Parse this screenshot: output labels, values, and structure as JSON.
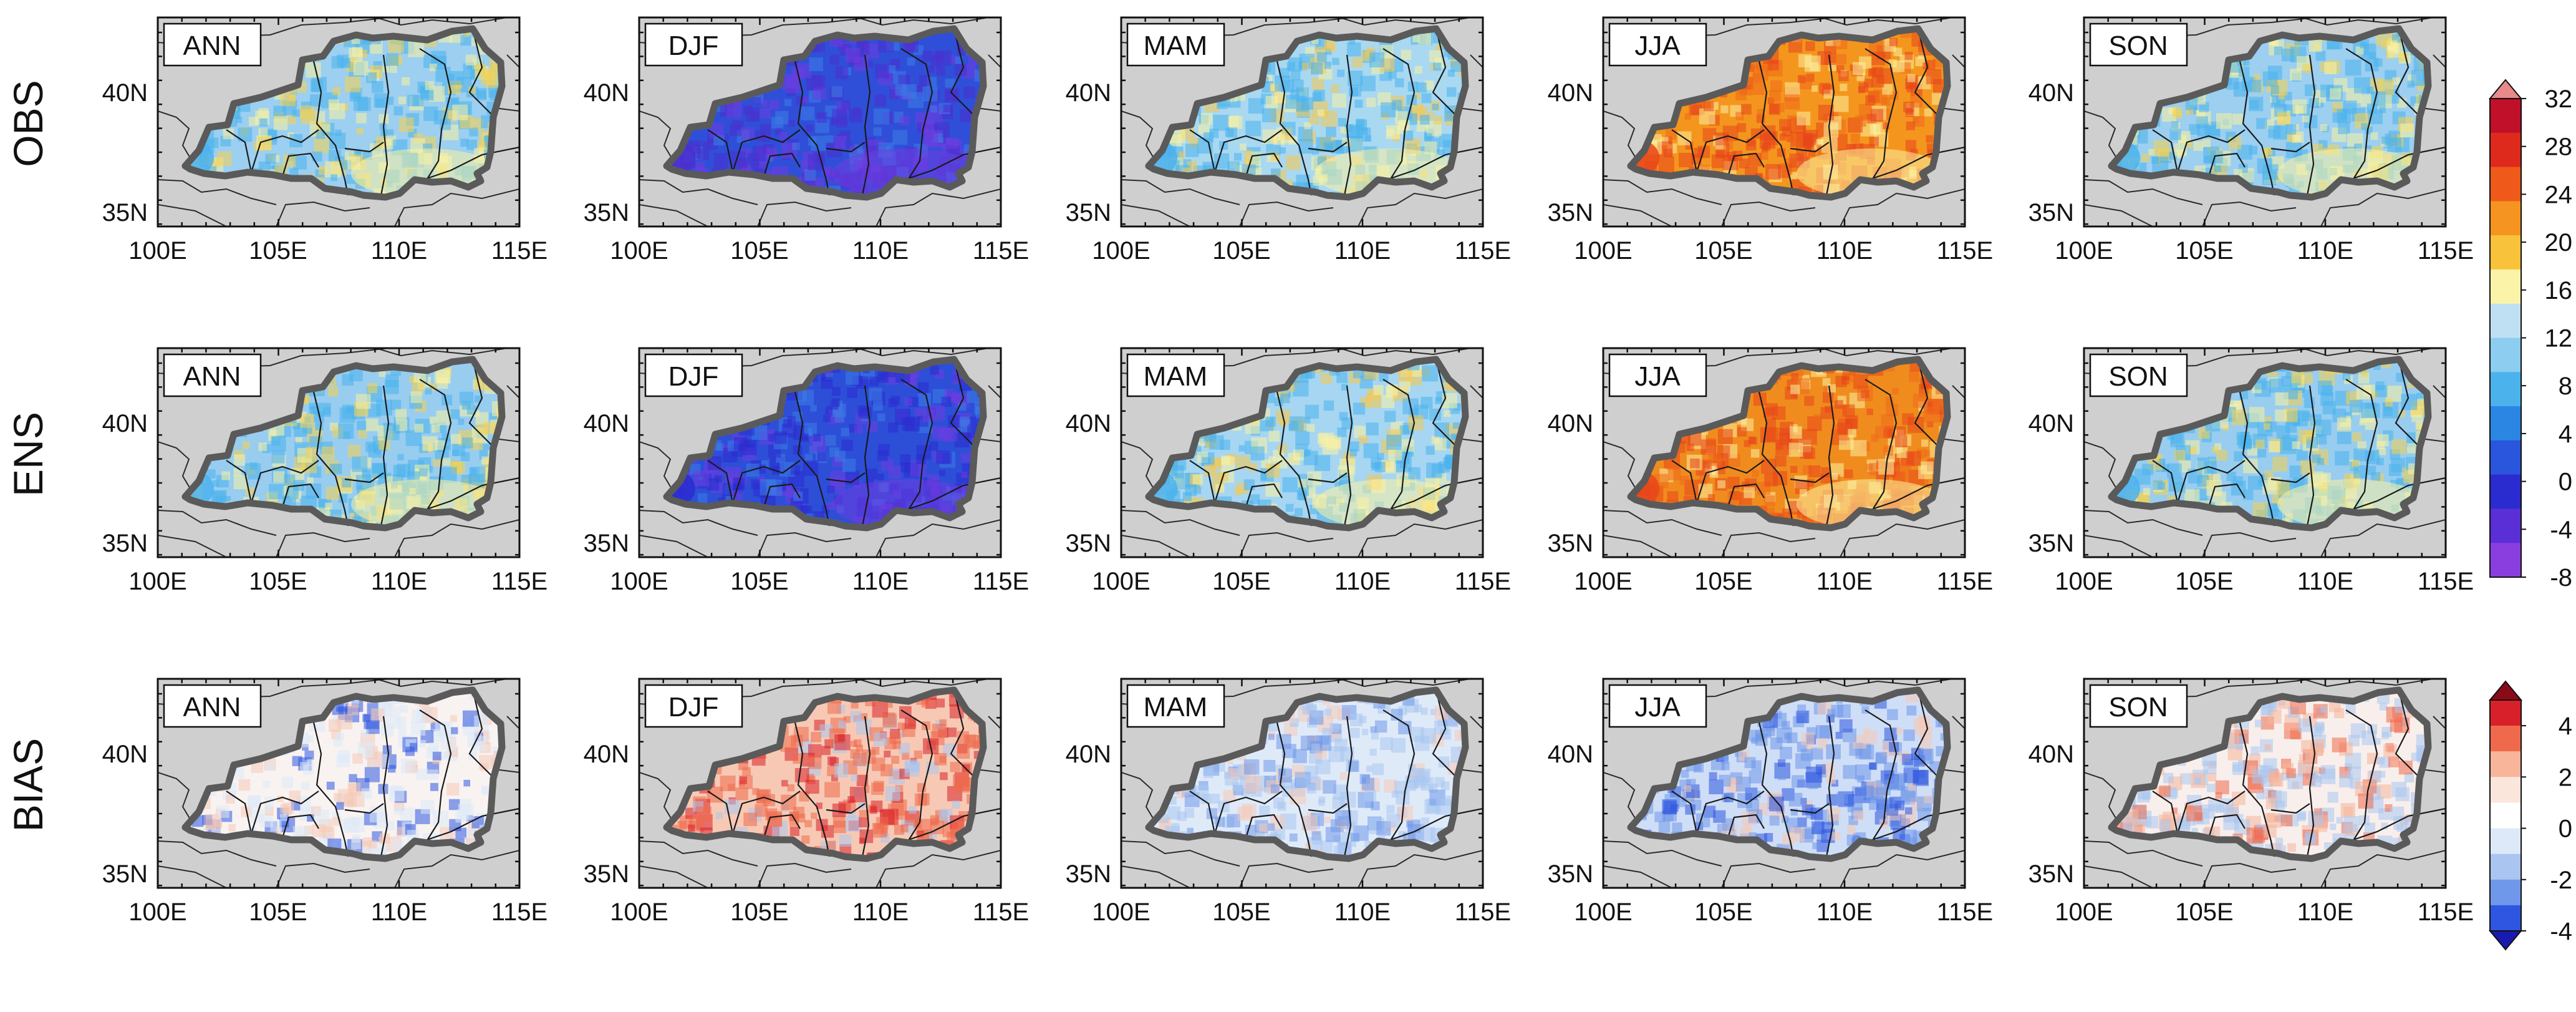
{
  "figure": {
    "row_labels": [
      "OBS",
      "ENS",
      "BIAS"
    ],
    "seasons": [
      "ANN",
      "DJF",
      "MAM",
      "JJA",
      "SON"
    ],
    "lat_ticks": [
      "40N",
      "35N"
    ],
    "lon_ticks": [
      "100E",
      "105E",
      "110E",
      "115E"
    ]
  },
  "colorbars": {
    "temperature": {
      "labels": [
        "32",
        "28",
        "24",
        "20",
        "16",
        "12",
        "8",
        "4",
        "0",
        "-4",
        "-8"
      ],
      "colors": [
        "#e88a8a",
        "#c0102a",
        "#dd2a1c",
        "#ef5a1a",
        "#f59420",
        "#f8c23a",
        "#fbf4a8",
        "#bfe0f3",
        "#8ccdf0",
        "#4bb2ec",
        "#2a86e2",
        "#2a55dd",
        "#2b2cd0",
        "#5a2fd6",
        "#8a3ee0"
      ]
    },
    "bias": {
      "labels": [
        "4",
        "2",
        "0",
        "-2",
        "-4"
      ],
      "colors": [
        "#8b0a1a",
        "#d8202a",
        "#ef6a4c",
        "#f8b59a",
        "#fbe6dc",
        "#ffffff",
        "#dde9f8",
        "#aac6f0",
        "#6f98ea",
        "#2e56e0",
        "#1a1ab0"
      ]
    }
  },
  "panels": {
    "OBS": {
      "ANN": {
        "base": "#9ccff0",
        "accents": [
          "#4bb2ec",
          "#fbf2a0",
          "#f7d14a"
        ]
      },
      "DJF": {
        "base": "#2f4fd8",
        "accents": [
          "#4b2fd0",
          "#6f3ce0",
          "#3d7de6"
        ]
      },
      "MAM": {
        "base": "#a9d8f1",
        "accents": [
          "#4bb2ec",
          "#fbf2a0",
          "#f7c84a"
        ]
      },
      "JJA": {
        "base": "#f4961e",
        "accents": [
          "#e8461a",
          "#fbf2a0",
          "#ee6a1a"
        ]
      },
      "SON": {
        "base": "#9ccff0",
        "accents": [
          "#4bb2ec",
          "#fbf2a0",
          "#f7d14a"
        ]
      }
    },
    "ENS": {
      "ANN": {
        "base": "#98cdf0",
        "accents": [
          "#4bb2ec",
          "#fbf2a0",
          "#f7d14a"
        ]
      },
      "DJF": {
        "base": "#2d4fd8",
        "accents": [
          "#2b2cd0",
          "#6f3ce0",
          "#3d7de6"
        ]
      },
      "MAM": {
        "base": "#a6d6f1",
        "accents": [
          "#4bb2ec",
          "#fbf2a0",
          "#f7c84a"
        ]
      },
      "JJA": {
        "base": "#f08c1e",
        "accents": [
          "#e8461a",
          "#fbf2a0",
          "#ee6a1a"
        ]
      },
      "SON": {
        "base": "#98cdf0",
        "accents": [
          "#4bb2ec",
          "#fbf2a0",
          "#f7d14a"
        ]
      }
    },
    "BIAS": {
      "ANN": {
        "base": "#f8f3f1",
        "accents": [
          "#dde9f8",
          "#f6c9b6",
          "#2e56e0"
        ]
      },
      "DJF": {
        "base": "#f7c9b4",
        "accents": [
          "#ef6a4c",
          "#d8202a",
          "#aac6f0"
        ]
      },
      "MAM": {
        "base": "#dfeaf9",
        "accents": [
          "#aac6f0",
          "#6f98ea",
          "#f6c9b6"
        ]
      },
      "JJA": {
        "base": "#cfdef7",
        "accents": [
          "#6f98ea",
          "#2e56e0",
          "#f6c9b6"
        ]
      },
      "SON": {
        "base": "#f8efec",
        "accents": [
          "#aac6f0",
          "#f6b59a",
          "#ef6a4c"
        ]
      }
    }
  }
}
